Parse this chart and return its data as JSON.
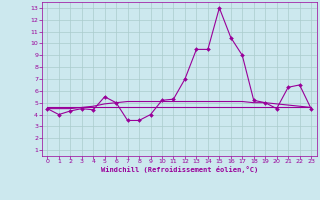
{
  "xlabel": "Windchill (Refroidissement éolien,°C)",
  "x": [
    0,
    1,
    2,
    3,
    4,
    5,
    6,
    7,
    8,
    9,
    10,
    11,
    12,
    13,
    14,
    15,
    16,
    17,
    18,
    19,
    20,
    21,
    22,
    23
  ],
  "y_line1": [
    4.5,
    4.0,
    4.3,
    4.5,
    4.4,
    5.5,
    5.0,
    3.5,
    3.5,
    4.0,
    5.2,
    5.3,
    7.0,
    9.5,
    9.5,
    13.0,
    10.5,
    9.0,
    5.2,
    5.0,
    4.5,
    6.3,
    6.5,
    4.5
  ],
  "y_line2": [
    4.6,
    4.6,
    4.6,
    4.6,
    4.6,
    4.6,
    4.6,
    4.6,
    4.6,
    4.6,
    4.6,
    4.6,
    4.6,
    4.6,
    4.6,
    4.6,
    4.6,
    4.6,
    4.6,
    4.6,
    4.6,
    4.6,
    4.6,
    4.6
  ],
  "y_line3": [
    4.5,
    4.5,
    4.5,
    4.6,
    4.7,
    4.9,
    5.0,
    5.1,
    5.1,
    5.1,
    5.1,
    5.1,
    5.1,
    5.1,
    5.1,
    5.1,
    5.1,
    5.1,
    5.0,
    5.0,
    4.9,
    4.8,
    4.7,
    4.6
  ],
  "line_color": "#990099",
  "bg_color": "#cce8ee",
  "grid_color": "#aacccc",
  "ylim": [
    1,
    13
  ],
  "xlim": [
    0,
    23
  ],
  "yticks": [
    1,
    2,
    3,
    4,
    5,
    6,
    7,
    8,
    9,
    10,
    11,
    12,
    13
  ],
  "xticks": [
    0,
    1,
    2,
    3,
    4,
    5,
    6,
    7,
    8,
    9,
    10,
    11,
    12,
    13,
    14,
    15,
    16,
    17,
    18,
    19,
    20,
    21,
    22,
    23
  ],
  "marker": "D",
  "markersize": 2.0,
  "linewidth": 0.8
}
